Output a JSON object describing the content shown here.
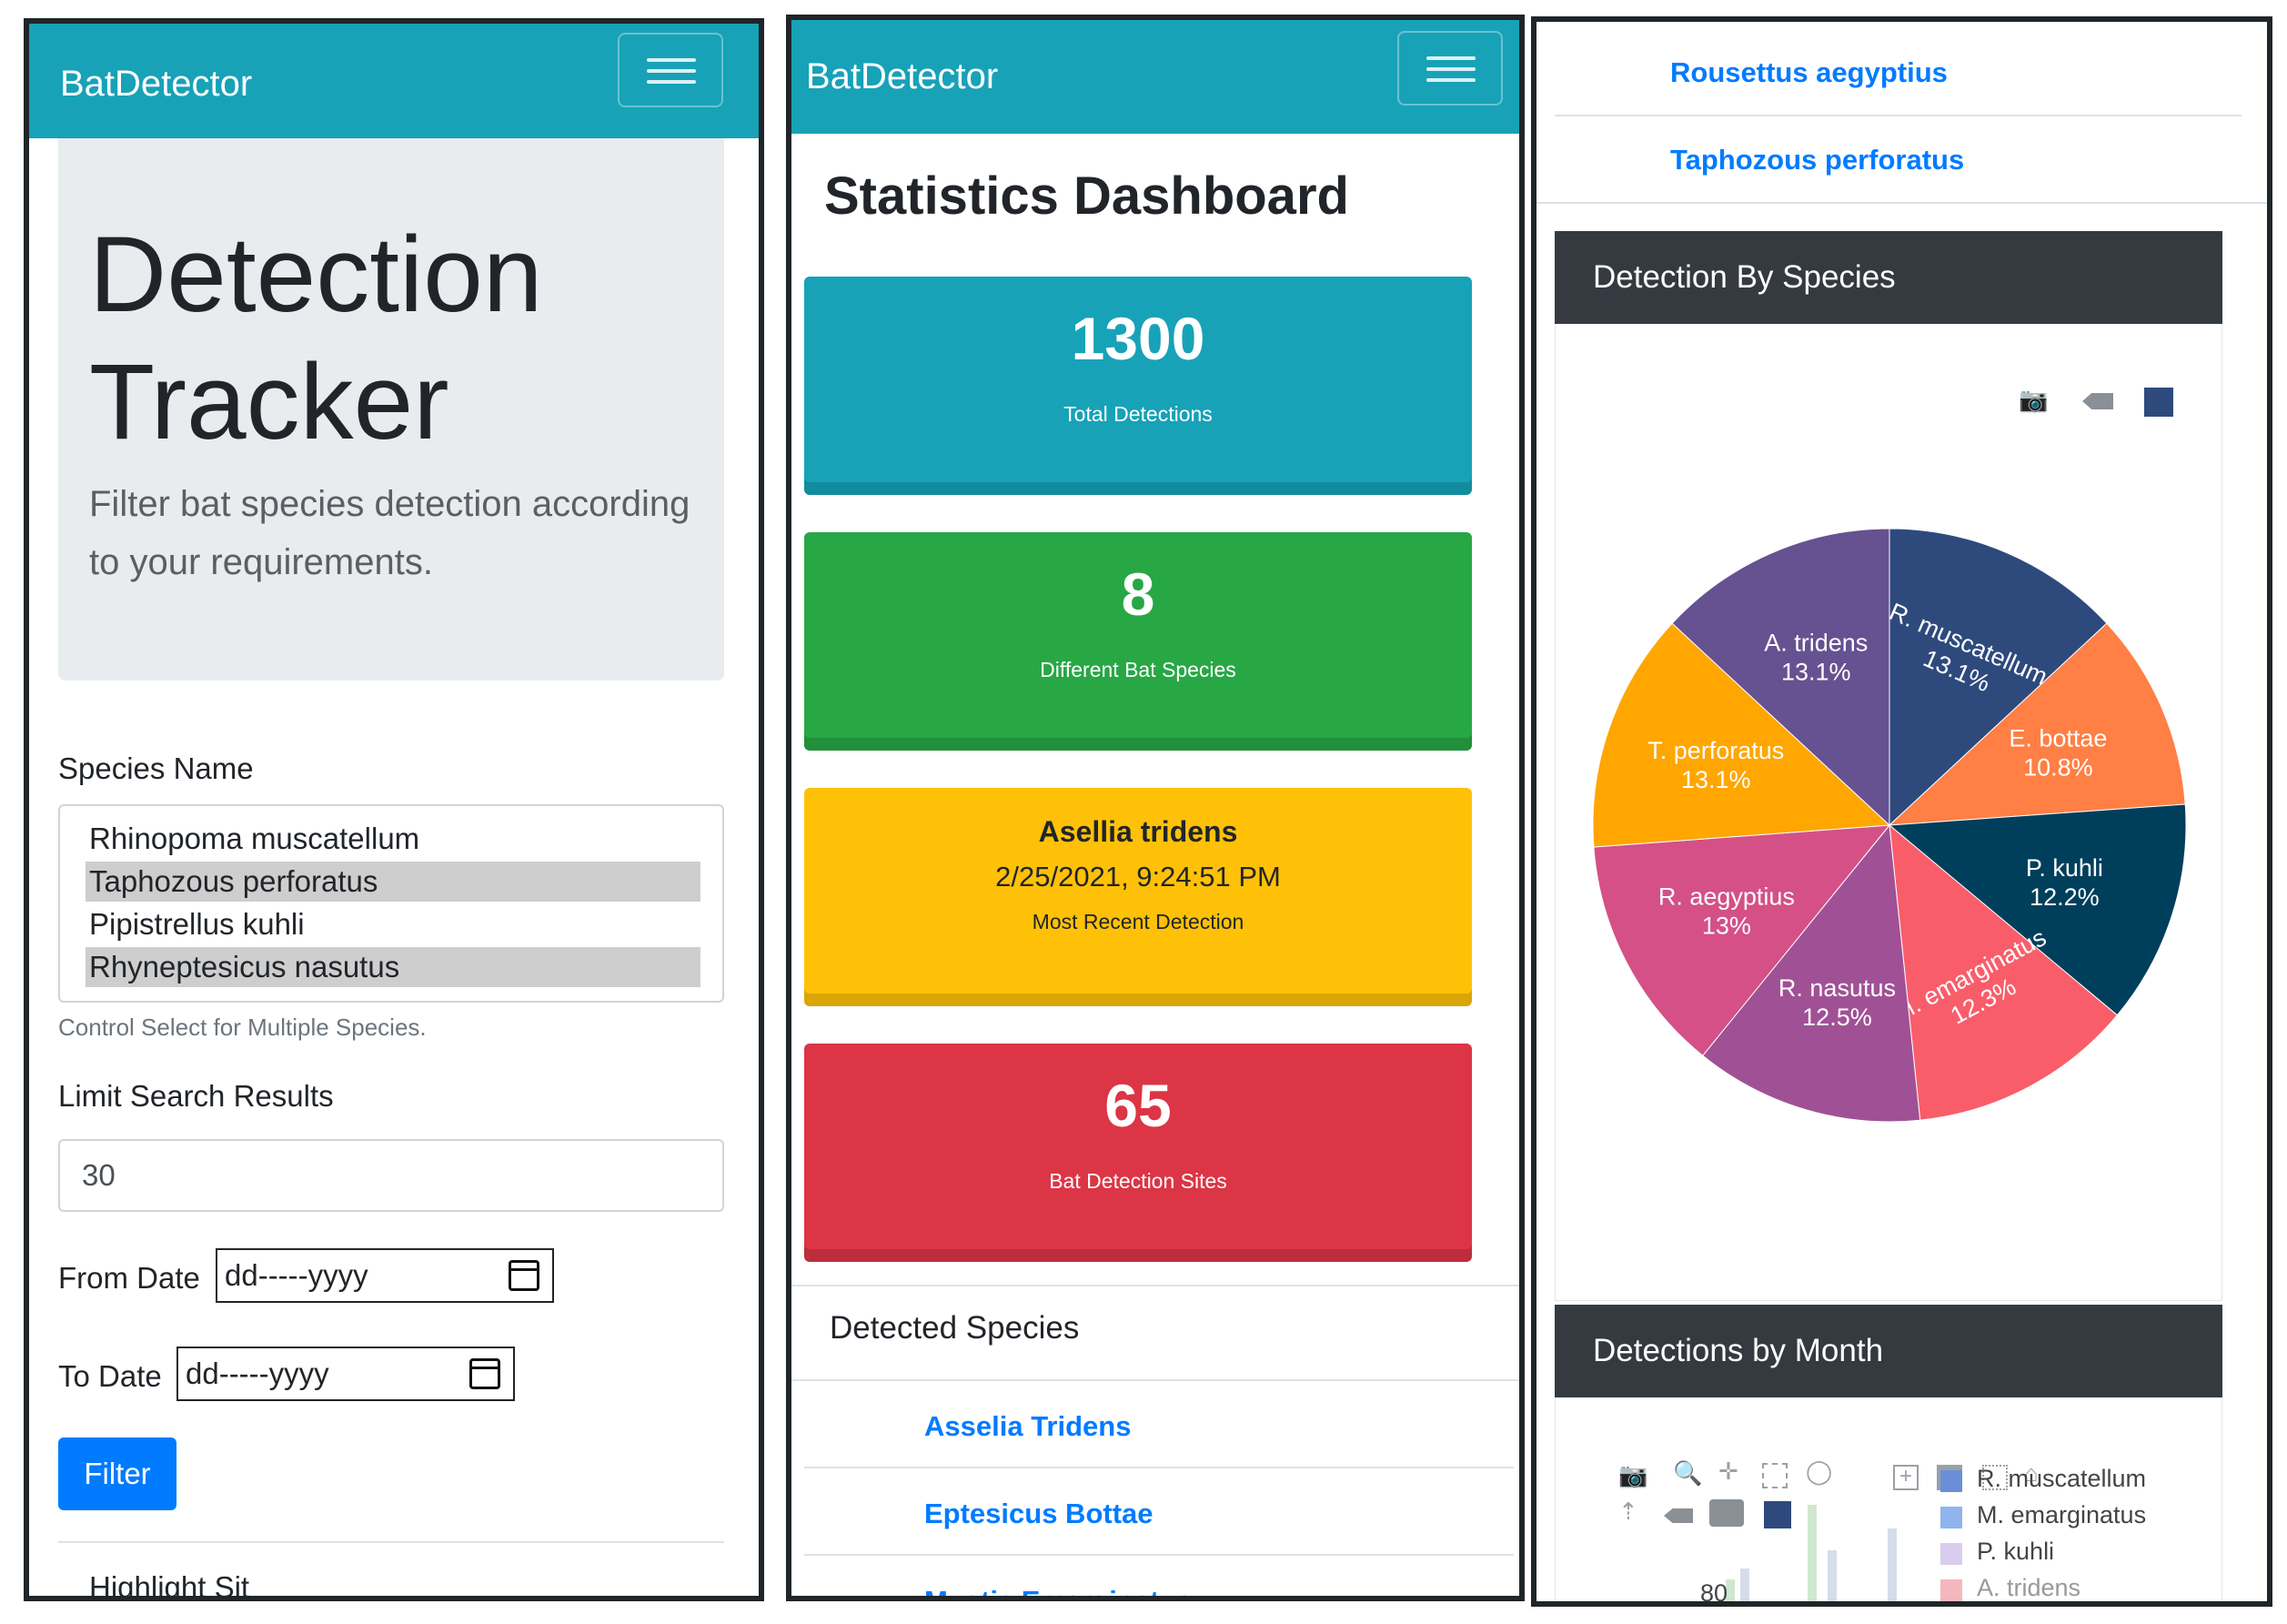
{
  "brand": "BatDetector",
  "tracker": {
    "title_line1": "Detection",
    "title_line2": "Tracker",
    "lead": "Filter bat species detection according to your requirements.",
    "species_label": "Species Name",
    "species_options": [
      {
        "name": "Rhinopoma muscatellum",
        "selected": false
      },
      {
        "name": "Taphozous perforatus",
        "selected": true
      },
      {
        "name": "Pipistrellus kuhli",
        "selected": false
      },
      {
        "name": "Rhyneptesicus nasutus",
        "selected": true
      }
    ],
    "species_help": "Control Select for Multiple Species.",
    "limit_label": "Limit Search Results",
    "limit_value": "30",
    "from_label": "From Date",
    "to_label": "To Date",
    "date_placeholder": "dd-----yyyy",
    "filter_button": "Filter",
    "cut_text": "Highlight Sit"
  },
  "dashboard": {
    "title": "Statistics Dashboard",
    "cards": {
      "total": {
        "value": "1300",
        "label": "Total Detections",
        "color": "#17a2b8"
      },
      "species": {
        "value": "8",
        "label": "Different Bat Species",
        "color": "#28a745"
      },
      "recent": {
        "species": "Asellia tridens",
        "datetime": "2/25/2021, 9:24:51 PM",
        "label": "Most Recent Detection",
        "color": "#ffc107"
      },
      "sites": {
        "value": "65",
        "label": "Bat Detection Sites",
        "color": "#dc3545"
      }
    },
    "detected_title": "Detected Species",
    "detected_links": [
      "Asselia Tridens",
      "Eptesicus Bottae",
      "Myotis Emarginatus"
    ]
  },
  "panel3": {
    "links": [
      "Rousettus aegyptius",
      "Taphozous perforatus"
    ],
    "species_chart_title": "Detection By Species",
    "month_chart_title": "Detections by Month",
    "month_y_tick": "80",
    "month_legend": [
      {
        "name": "R. muscatellum",
        "color": "#6b8fd6"
      },
      {
        "name": "M. emarginatus",
        "color": "#8fb4ee"
      },
      {
        "name": "P. kuhli",
        "color": "#d9cdef"
      },
      {
        "name": "A. tridens",
        "color": "#f5b7bd"
      }
    ],
    "icons": {
      "pie_modebar": [
        "camera-icon",
        "tag-icon",
        "plotly-logo-icon"
      ],
      "month_modebar": [
        "camera-icon",
        "zoom-icon",
        "pan-icon",
        "box-select-icon",
        "lasso-icon",
        "zoom-in-icon",
        "zoom-out-icon",
        "autoscale-icon",
        "reset-axes-icon",
        "spike-lines-icon",
        "hover-closest-icon",
        "hover-compare-icon",
        "plotly-logo-icon"
      ]
    }
  },
  "chart_data": [
    {
      "type": "pie",
      "title": "Detection By Species",
      "categories": [
        "R. muscatellum",
        "E. bottae",
        "P. kuhli",
        "M. emarginatus",
        "R. nasutus",
        "R. aegyptius",
        "T. perforatus",
        "A. tridens"
      ],
      "values": [
        13.1,
        10.8,
        12.2,
        12.3,
        12.5,
        13.0,
        13.1,
        13.1
      ],
      "labels": [
        "13.1%",
        "10.8%",
        "12.2%",
        "12.3%",
        "12.5%",
        "13%",
        "13.1%",
        "13.1%"
      ],
      "colors": [
        "#2e4a7d",
        "#ff7f45",
        "#003f5c",
        "#f95d6a",
        "#a05195",
        "#d45087",
        "#ffa600",
        "#665191"
      ]
    },
    {
      "type": "bar",
      "title": "Detections by Month",
      "series": [
        {
          "name": "R. muscatellum"
        },
        {
          "name": "M. emarginatus"
        },
        {
          "name": "P. kuhli"
        },
        {
          "name": "A. tridens"
        }
      ],
      "y_ticks_visible": [
        80
      ]
    }
  ]
}
